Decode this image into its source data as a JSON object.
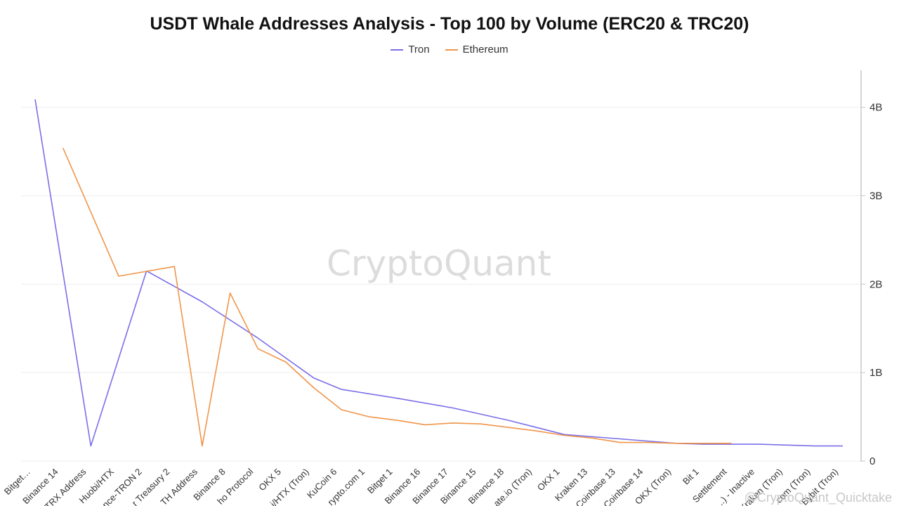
{
  "chart_data": {
    "type": "line",
    "title": "USDT Whale Addresses Analysis - Top 100 by Volume (ERC20 & TRC20)",
    "watermark": "CryptoQuant",
    "footer_watermark": "@CryptoQuant_Quicktake",
    "y_axis": {
      "position": "right",
      "ylim": [
        0,
        4300000000
      ],
      "ticks": [
        0,
        1000000000,
        2000000000,
        3000000000,
        4000000000
      ],
      "tick_labels": [
        "0",
        "1B",
        "2B",
        "3B",
        "4B"
      ]
    },
    "x_tick_labels": [
      "Bitget…",
      "Binance 14",
      "TRX Address",
      "Huobi/HTX",
      "nce-TRON 2",
      "r Treasury 2",
      "TH Address",
      "Binance 8",
      "ho Protocol",
      "OKX 5",
      "i/HTX (Tron)",
      "KuCoin 6",
      "rypto.com 1",
      "Bitget 1",
      "Binance 16",
      "Binance 17",
      "Binance 15",
      "Binance 18",
      "ate.io (Tron)",
      "OKX 1",
      "Kraken 13",
      "Coinbase 13",
      "Coinbase 14",
      "OKX (Tron)",
      "Bit 1",
      "Settlement",
      "...) - Inactive",
      "Kraken (Tron)",
      ".com (Tron)",
      "Bybit (Tron)"
    ],
    "grid": true,
    "legend": "top-center",
    "series": [
      {
        "name": "Tron",
        "color": "#7b6fe8",
        "points": [
          [
            0,
            4090000000
          ],
          [
            2,
            170000000
          ],
          [
            4,
            2150000000
          ],
          [
            6,
            1800000000
          ],
          [
            8,
            1390000000
          ],
          [
            10,
            940000000
          ],
          [
            11,
            810000000
          ],
          [
            13,
            710000000
          ],
          [
            15,
            600000000
          ],
          [
            17,
            460000000
          ],
          [
            19,
            300000000
          ],
          [
            21,
            250000000
          ],
          [
            23,
            200000000
          ],
          [
            24,
            190000000
          ],
          [
            26,
            190000000
          ],
          [
            28,
            170000000
          ],
          [
            29,
            170000000
          ]
        ]
      },
      {
        "name": "Ethereum",
        "color": "#f0954a",
        "points": [
          [
            1,
            3540000000
          ],
          [
            3,
            2090000000
          ],
          [
            5,
            2200000000
          ],
          [
            6,
            170000000
          ],
          [
            7,
            1900000000
          ],
          [
            8,
            1270000000
          ],
          [
            9,
            1120000000
          ],
          [
            10,
            830000000
          ],
          [
            11,
            580000000
          ],
          [
            12,
            500000000
          ],
          [
            13,
            460000000
          ],
          [
            14,
            410000000
          ],
          [
            15,
            430000000
          ],
          [
            16,
            420000000
          ],
          [
            18,
            340000000
          ],
          [
            19,
            290000000
          ],
          [
            20,
            260000000
          ],
          [
            21,
            210000000
          ],
          [
            22,
            210000000
          ],
          [
            23,
            200000000
          ],
          [
            25,
            200000000
          ]
        ]
      }
    ]
  }
}
